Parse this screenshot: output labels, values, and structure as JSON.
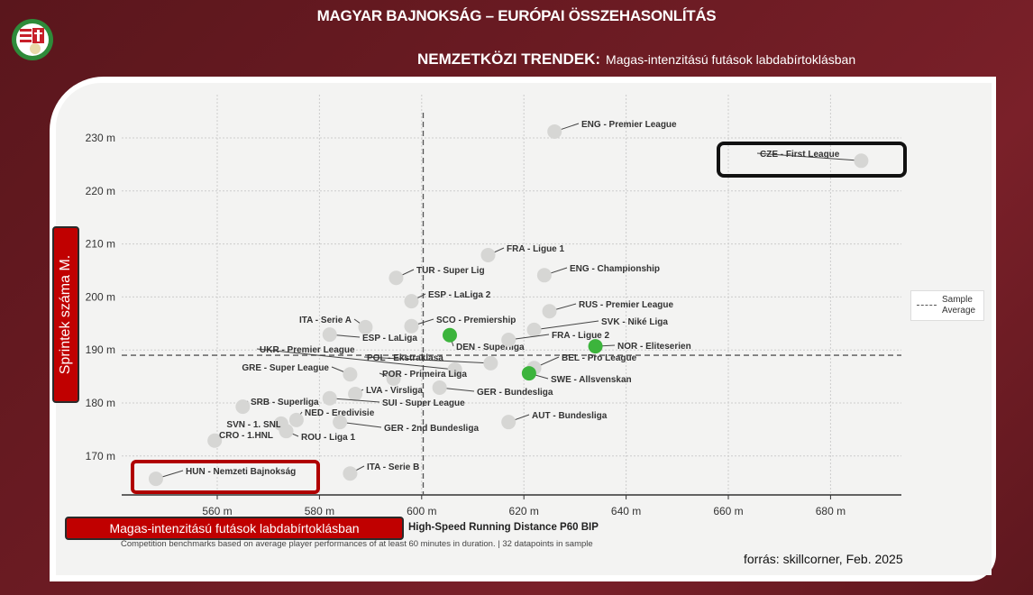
{
  "header": {
    "title": "MAGYAR BAJNOKSÁG – EURÓPAI ÖSSZEHASONLÍTÁS",
    "section_label": "NEMZETKÖZI TRENDEK:",
    "section_value": "Magas-intenzitású futások labdabírtoklásban"
  },
  "annotations": {
    "y_axis_box": "Sprintek száma M.",
    "x_axis_box": "Magas-intenzitású futások labdabírtoklásban",
    "source": "forrás: skillcorner, Feb. 2025"
  },
  "colors": {
    "background": "#6e1c24",
    "highlight_red": "#c00000",
    "point_gray": "#d6d6d4",
    "point_green": "#3cb43c"
  },
  "chart_data": {
    "type": "scatter",
    "xlabel": "High-Speed Running Distance P60 BIP",
    "caption": "Competition benchmarks based on average player performances of at least 60 minutes in duration. | 32 datapoints in sample",
    "xlim": [
      548,
      694
    ],
    "ylim": [
      163,
      236
    ],
    "x_ticks": [
      "560 m",
      "580 m",
      "600 m",
      "620 m",
      "640 m",
      "660 m",
      "680 m"
    ],
    "x_tick_values": [
      560,
      580,
      600,
      620,
      640,
      660,
      680
    ],
    "y_ticks": [
      "170 m",
      "180 m",
      "190 m",
      "200 m",
      "210 m",
      "220 m",
      "230 m"
    ],
    "y_tick_values": [
      170,
      180,
      190,
      200,
      210,
      220,
      230
    ],
    "grid": true,
    "legend": {
      "label": "Sample Average",
      "placement": "right"
    },
    "averages": {
      "x": 600.3,
      "y": 189.0
    },
    "points": [
      {
        "label": "ENG - Premier League",
        "x": 626,
        "y": 231.2,
        "color": "gray"
      },
      {
        "label": "CZE - First League",
        "x": 686,
        "y": 225.7,
        "color": "gray"
      },
      {
        "label": "FRA - Ligue 1",
        "x": 613,
        "y": 207.9,
        "color": "gray"
      },
      {
        "label": "TUR - Super Lig",
        "x": 595,
        "y": 203.6,
        "color": "gray"
      },
      {
        "label": "ENG - Championship",
        "x": 624,
        "y": 204.1,
        "color": "gray"
      },
      {
        "label": "ESP - LaLiga 2",
        "x": 598,
        "y": 199.2,
        "color": "gray"
      },
      {
        "label": "RUS - Premier League",
        "x": 625,
        "y": 197.3,
        "color": "gray"
      },
      {
        "label": "ITA - Serie A",
        "x": 589,
        "y": 194.3,
        "color": "gray"
      },
      {
        "label": "SCO - Premiership",
        "x": 598,
        "y": 194.5,
        "color": "gray"
      },
      {
        "label": "ESP - LaLiga",
        "x": 582,
        "y": 192.9,
        "color": "gray"
      },
      {
        "label": "DEN - Superliga",
        "x": 605.5,
        "y": 192.8,
        "color": "green"
      },
      {
        "label": "SVK - Niké Liga",
        "x": 622,
        "y": 193.8,
        "color": "gray"
      },
      {
        "label": "FRA - Ligue 2",
        "x": 617,
        "y": 191.9,
        "color": "gray"
      },
      {
        "label": "NOR - Eliteserien",
        "x": 634,
        "y": 190.7,
        "color": "green"
      },
      {
        "label": "UKR - Premier League",
        "x": 606.5,
        "y": 186.3,
        "color": "gray"
      },
      {
        "label": "POL - Ekstraklasa",
        "x": 613.5,
        "y": 187.5,
        "color": "gray"
      },
      {
        "label": "BEL - Pro League",
        "x": 622,
        "y": 186.6,
        "color": "gray"
      },
      {
        "label": "GRE - Super League",
        "x": 586,
        "y": 185.4,
        "color": "gray"
      },
      {
        "label": "POR - Primeira Liga",
        "x": 594.5,
        "y": 184.6,
        "color": "gray"
      },
      {
        "label": "SWE - Allsvenskan",
        "x": 621,
        "y": 185.6,
        "color": "green"
      },
      {
        "label": "LVA - Virsliga",
        "x": 587,
        "y": 181.7,
        "color": "gray"
      },
      {
        "label": "GER - Bundesliga",
        "x": 603.5,
        "y": 182.9,
        "color": "gray"
      },
      {
        "label": "SRB - Superliga",
        "x": 565,
        "y": 179.3,
        "color": "gray"
      },
      {
        "label": "SUI - Super League",
        "x": 582,
        "y": 180.9,
        "color": "gray"
      },
      {
        "label": "NED - Eredivisie",
        "x": 575.5,
        "y": 176.8,
        "color": "gray"
      },
      {
        "label": "SVN - 1. SNL",
        "x": 572.5,
        "y": 176.1,
        "color": "gray"
      },
      {
        "label": "GER - 2nd Bundesliga",
        "x": 584,
        "y": 176.4,
        "color": "gray"
      },
      {
        "label": "ROU - Liga 1",
        "x": 573.5,
        "y": 174.7,
        "color": "gray"
      },
      {
        "label": "AUT - Bundesliga",
        "x": 617,
        "y": 176.4,
        "color": "gray"
      },
      {
        "label": "CRO - 1.HNL",
        "x": 559.5,
        "y": 172.9,
        "color": "gray"
      },
      {
        "label": "HUN - Nemzeti Bajnokság",
        "x": 548,
        "y": 165.7,
        "color": "gray"
      },
      {
        "label": "ITA - Serie B",
        "x": 586,
        "y": 166.7,
        "color": "gray"
      }
    ]
  }
}
